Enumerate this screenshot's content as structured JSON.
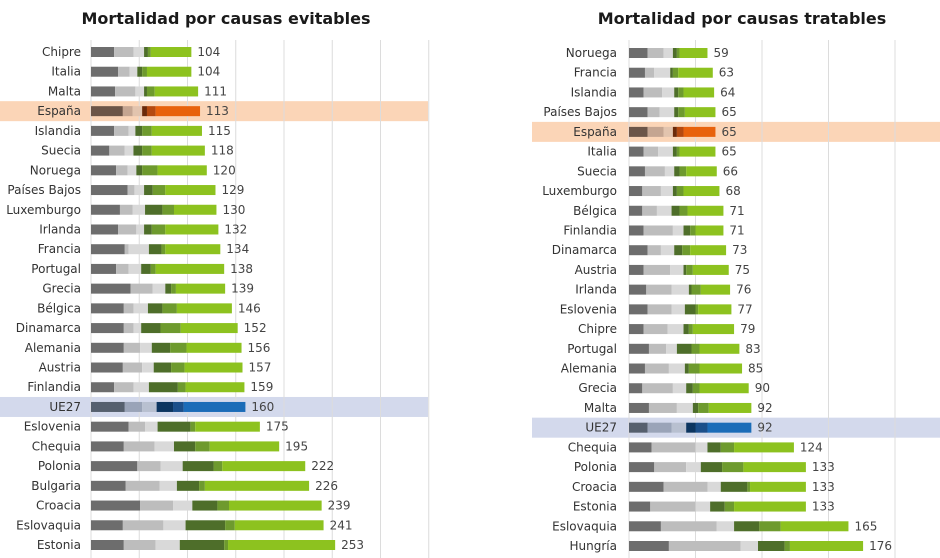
{
  "colors": {
    "default": [
      "#6d6d6d",
      "#bdbdbd",
      "#d9d9d9",
      "#4e6e2a",
      "#6e9a2e",
      "#8dc21f"
    ],
    "spain": [
      "#6b5548",
      "#c4a591",
      "#e2c4ae",
      "#6b2a0a",
      "#b54a10",
      "#e8620c"
    ],
    "eu": [
      "#56606e",
      "#9aa4b8",
      "#b8c0d0",
      "#0c3560",
      "#1b4f8a",
      "#1b6cb8"
    ],
    "spain_band": "#fbd5b7",
    "eu_band": "#d3d9ec",
    "grid": "#dcdcdc"
  },
  "chart_data": [
    {
      "type": "bar",
      "orientation": "horizontal",
      "stacked": true,
      "title": "Mortalidad por causas evitables",
      "xlim": [
        0,
        350
      ],
      "grid": true,
      "highlight": {
        "España": "spain",
        "UE27": "eu"
      },
      "categories": [
        "Chipre",
        "Italia",
        "Malta",
        "España",
        "Islandia",
        "Suecia",
        "Noruega",
        "Países Bajos",
        "Luxemburgo",
        "Irlanda",
        "Francia",
        "Portugal",
        "Grecia",
        "Bélgica",
        "Dinamarca",
        "Alemania",
        "Austria",
        "Finlandia",
        "UE27",
        "Eslovenia",
        "Chequia",
        "Polonia",
        "Bulgaria",
        "Croacia",
        "Eslovaquia",
        "Estonia"
      ],
      "totals": [
        104,
        104,
        111,
        113,
        115,
        118,
        120,
        129,
        130,
        132,
        134,
        138,
        139,
        146,
        152,
        156,
        157,
        159,
        160,
        175,
        195,
        222,
        226,
        239,
        241,
        253
      ],
      "segments": [
        [
          24,
          20,
          11,
          4,
          3,
          42
        ],
        [
          28,
          12,
          8,
          5,
          5,
          46
        ],
        [
          25,
          21,
          9,
          3,
          8,
          45
        ],
        [
          33,
          10,
          10,
          5,
          9,
          46
        ],
        [
          24,
          15,
          7,
          7,
          10,
          52
        ],
        [
          19,
          16,
          9,
          9,
          10,
          55
        ],
        [
          26,
          12,
          9,
          6,
          16,
          51
        ],
        [
          38,
          7,
          10,
          9,
          13,
          52
        ],
        [
          30,
          13,
          13,
          18,
          12,
          44
        ],
        [
          28,
          19,
          8,
          8,
          14,
          55
        ],
        [
          35,
          4,
          21,
          13,
          4,
          57
        ],
        [
          26,
          13,
          13,
          10,
          5,
          71
        ],
        [
          41,
          23,
          13,
          6,
          5,
          51
        ],
        [
          34,
          10,
          15,
          15,
          15,
          57
        ],
        [
          34,
          10,
          8,
          20,
          21,
          59
        ],
        [
          34,
          17,
          12,
          19,
          17,
          57
        ],
        [
          33,
          20,
          12,
          18,
          14,
          60
        ],
        [
          24,
          20,
          16,
          30,
          8,
          61
        ],
        [
          35,
          18,
          15,
          17,
          11,
          64
        ],
        [
          39,
          17,
          13,
          34,
          5,
          67
        ],
        [
          34,
          32,
          20,
          22,
          15,
          72
        ],
        [
          48,
          24,
          23,
          32,
          9,
          86
        ],
        [
          36,
          35,
          18,
          23,
          6,
          108
        ],
        [
          51,
          34,
          20,
          26,
          12,
          96
        ],
        [
          33,
          42,
          23,
          41,
          10,
          92
        ],
        [
          34,
          33,
          25,
          46,
          4,
          111
        ]
      ]
    },
    {
      "type": "bar",
      "orientation": "horizontal",
      "stacked": true,
      "title": "Mortalidad por causas tratables",
      "xlim": [
        0,
        250
      ],
      "grid": true,
      "highlight": {
        "España": "spain",
        "UE27": "eu"
      },
      "categories": [
        "Noruega",
        "Francia",
        "Islandia",
        "Países Bajos",
        "España",
        "Italia",
        "Suecia",
        "Luxemburgo",
        "Bélgica",
        "Finlandia",
        "Dinamarca",
        "Austria",
        "Irlanda",
        "Eslovenia",
        "Chipre",
        "Portugal",
        "Alemania",
        "Grecia",
        "Malta",
        "UE27",
        "Chequia",
        "Polonia",
        "Croacia",
        "Estonia",
        "Eslovaquia",
        "Hungría"
      ],
      "totals": [
        59,
        63,
        64,
        65,
        65,
        65,
        66,
        68,
        71,
        71,
        73,
        75,
        76,
        77,
        79,
        83,
        85,
        90,
        92,
        92,
        124,
        133,
        133,
        133,
        165,
        176
      ],
      "segments": [
        [
          14,
          12,
          7,
          3,
          2,
          21
        ],
        [
          12,
          7,
          12,
          2,
          4,
          26
        ],
        [
          11,
          14,
          9,
          3,
          4,
          23
        ],
        [
          14,
          9,
          11,
          3,
          5,
          23
        ],
        [
          14,
          12,
          7,
          3,
          5,
          24
        ],
        [
          11,
          11,
          11,
          3,
          2,
          27
        ],
        [
          12,
          15,
          7,
          4,
          5,
          23
        ],
        [
          10,
          14,
          9,
          3,
          5,
          27
        ],
        [
          10,
          11,
          11,
          6,
          6,
          27
        ],
        [
          11,
          22,
          8,
          5,
          4,
          21
        ],
        [
          14,
          10,
          10,
          6,
          6,
          27
        ],
        [
          11,
          20,
          10,
          2,
          5,
          27
        ],
        [
          13,
          19,
          13,
          2,
          7,
          22
        ],
        [
          14,
          18,
          10,
          8,
          2,
          25
        ],
        [
          11,
          18,
          12,
          4,
          3,
          31
        ],
        [
          15,
          13,
          8,
          11,
          6,
          30
        ],
        [
          12,
          18,
          12,
          3,
          8,
          32
        ],
        [
          10,
          23,
          10,
          5,
          5,
          37
        ],
        [
          15,
          21,
          12,
          4,
          8,
          32
        ],
        [
          14,
          18,
          11,
          7,
          9,
          33
        ],
        [
          17,
          33,
          9,
          10,
          10,
          45
        ],
        [
          19,
          24,
          11,
          16,
          16,
          47
        ],
        [
          26,
          33,
          10,
          20,
          2,
          42
        ],
        [
          16,
          34,
          11,
          11,
          7,
          54
        ],
        [
          24,
          42,
          13,
          19,
          16,
          51
        ],
        [
          30,
          54,
          13,
          20,
          4,
          55
        ]
      ]
    }
  ]
}
